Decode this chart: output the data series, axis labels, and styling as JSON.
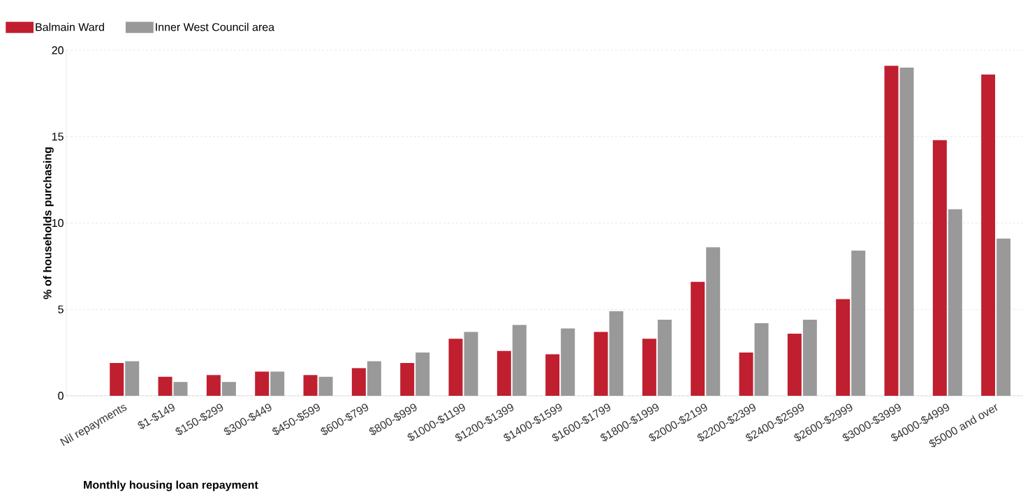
{
  "chart_data": {
    "type": "bar",
    "xlabel": "Monthly housing loan repayment",
    "ylabel": "% of households purchasing",
    "categories": [
      "Nil repayments",
      "$1-$149",
      "$150-$299",
      "$300-$449",
      "$450-$599",
      "$600-$799",
      "$800-$999",
      "$1000-$1199",
      "$1200-$1399",
      "$1400-$1599",
      "$1600-$1799",
      "$1800-$1999",
      "$2000-$2199",
      "$2200-$2399",
      "$2400-$2599",
      "$2600-$2999",
      "$3000-$3999",
      "$4000-$4999",
      "$5000 and over"
    ],
    "series": [
      {
        "name": "Balmain Ward",
        "color": "#c01f2f",
        "values": [
          1.9,
          1.1,
          1.2,
          1.4,
          1.2,
          1.6,
          1.9,
          3.3,
          2.6,
          2.4,
          3.7,
          3.3,
          6.6,
          2.5,
          3.6,
          5.6,
          19.1,
          14.8,
          18.6
        ]
      },
      {
        "name": "Inner West Council area",
        "color": "#999999",
        "values": [
          2.0,
          0.8,
          0.8,
          1.4,
          1.1,
          2.0,
          2.5,
          3.7,
          4.1,
          3.9,
          4.9,
          4.4,
          8.6,
          4.2,
          4.4,
          8.4,
          19.0,
          10.8,
          9.1
        ]
      }
    ],
    "ylim": [
      0,
      20
    ],
    "yticks": [
      0,
      5,
      10,
      15,
      20
    ],
    "grid": "y",
    "legend": "top left"
  }
}
